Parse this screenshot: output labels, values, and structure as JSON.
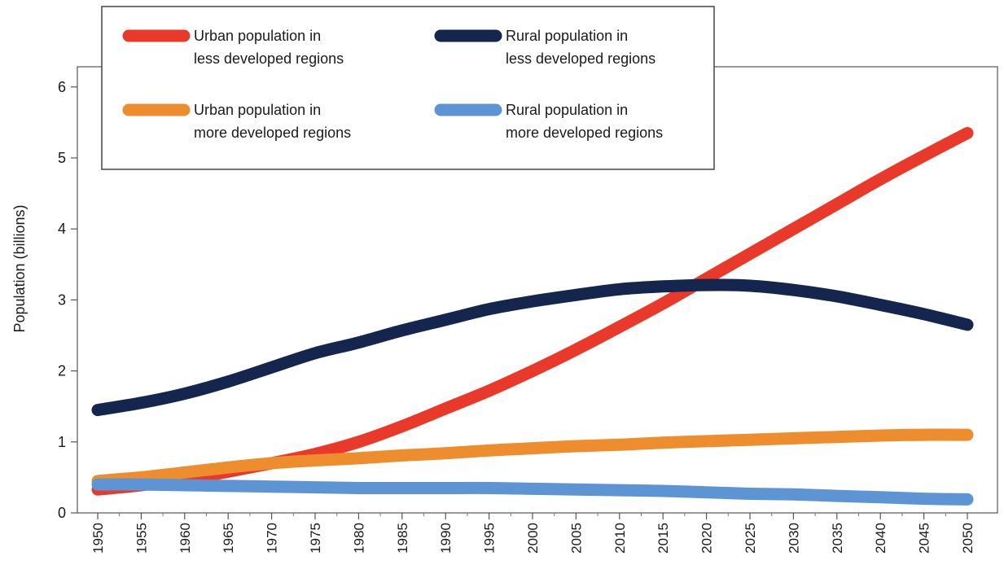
{
  "chart_data": {
    "type": "line",
    "title": "",
    "xlabel": "",
    "ylabel": "Population (billions)",
    "ylim": [
      0,
      6
    ],
    "yticks": [
      "0",
      "1",
      "2",
      "3",
      "4",
      "5",
      "6"
    ],
    "x": [
      1950,
      1955,
      1960,
      1965,
      1970,
      1975,
      1980,
      1985,
      1990,
      1995,
      2000,
      2005,
      2010,
      2015,
      2020,
      2025,
      2030,
      2035,
      2040,
      2045,
      2050
    ],
    "xticks": [
      "1950",
      "1955",
      "1960",
      "1965",
      "1970",
      "1975",
      "1980",
      "1985",
      "1990",
      "1995",
      "2000",
      "2005",
      "2010",
      "2015",
      "2020",
      "2025",
      "2030",
      "2035",
      "2040",
      "2045",
      "2050"
    ],
    "grid": false,
    "legend": {
      "placement": "top",
      "entries": [
        {
          "line1": "Urban population in",
          "line2": "less developed regions",
          "color": "#e8392b"
        },
        {
          "line1": "Rural population in",
          "line2": "less developed regions",
          "color": "#14264d"
        },
        {
          "line1": "Urban population in",
          "line2": "more developed regions",
          "color": "#ee8d2e"
        },
        {
          "line1": "Rural population in",
          "line2": "more developed regions",
          "color": "#5d94d3"
        }
      ]
    },
    "series": [
      {
        "name": "Urban population in less developed regions",
        "color": "#e8392b",
        "values": [
          0.33,
          0.39,
          0.47,
          0.58,
          0.7,
          0.83,
          1.0,
          1.22,
          1.47,
          1.72,
          2.0,
          2.3,
          2.62,
          2.95,
          3.3,
          3.65,
          4.0,
          4.35,
          4.7,
          5.03,
          5.35
        ]
      },
      {
        "name": "Rural population in less developed regions",
        "color": "#14264d",
        "values": [
          1.45,
          1.55,
          1.68,
          1.85,
          2.05,
          2.25,
          2.4,
          2.57,
          2.72,
          2.87,
          2.98,
          3.07,
          3.15,
          3.19,
          3.21,
          3.2,
          3.14,
          3.05,
          2.93,
          2.8,
          2.65
        ]
      },
      {
        "name": "Urban population in more developed regions",
        "color": "#ee8d2e",
        "values": [
          0.45,
          0.5,
          0.57,
          0.64,
          0.7,
          0.74,
          0.77,
          0.81,
          0.84,
          0.88,
          0.91,
          0.94,
          0.96,
          0.99,
          1.01,
          1.03,
          1.05,
          1.07,
          1.09,
          1.1,
          1.1
        ]
      },
      {
        "name": "Rural population in more developed regions",
        "color": "#5d94d3",
        "values": [
          0.4,
          0.4,
          0.39,
          0.38,
          0.37,
          0.36,
          0.35,
          0.35,
          0.35,
          0.35,
          0.34,
          0.33,
          0.32,
          0.31,
          0.29,
          0.27,
          0.26,
          0.24,
          0.22,
          0.2,
          0.19
        ]
      }
    ]
  }
}
